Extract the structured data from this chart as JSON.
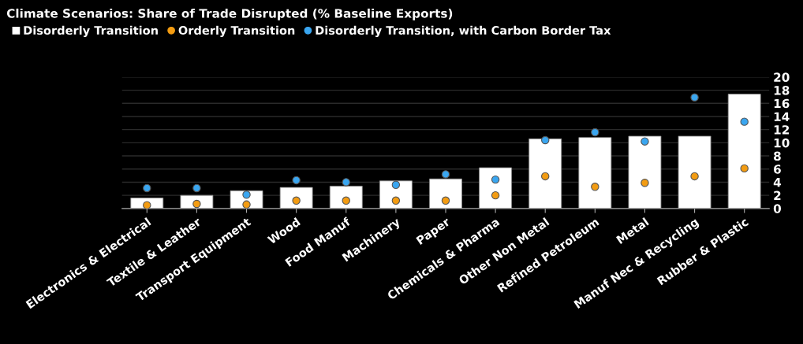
{
  "chart_data": {
    "type": "bar",
    "title": "Climate Scenarios: Share of Trade Disrupted (% Baseline Exports)",
    "categories": [
      "Electronics & Electrical",
      "Textile & Leather",
      "Transport Equipment",
      "Wood",
      "Food Manuf",
      "Machinery",
      "Paper",
      "Chemicals & Pharma",
      "Other Non Metal",
      "Refined Petroleum",
      "Metal",
      "Manuf Nec & Recycling",
      "Rubber & Plastic"
    ],
    "series": [
      {
        "name": "Disorderly Transition",
        "color": "#ffffff",
        "values": [
          1.6,
          2.0,
          2.7,
          3.2,
          3.4,
          4.2,
          4.5,
          6.2,
          10.6,
          10.8,
          11.0,
          11.0,
          17.4
        ]
      },
      {
        "name": "Orderly Transition",
        "color": "#f39c12",
        "type": "scatter",
        "values": [
          0.5,
          0.7,
          0.6,
          1.2,
          1.2,
          1.2,
          1.2,
          2.0,
          4.9,
          3.3,
          3.9,
          4.9,
          6.1
        ]
      },
      {
        "name": "Disorderly Transition, with Carbon Border Tax",
        "color": "#3aa6f0",
        "type": "scatter",
        "values": [
          3.1,
          3.1,
          2.1,
          4.3,
          4.0,
          3.6,
          5.2,
          4.4,
          10.4,
          11.6,
          10.2,
          16.9,
          13.2
        ]
      }
    ],
    "ylim": [
      0,
      20
    ],
    "yticks": [
      0,
      2,
      4,
      6,
      8,
      10,
      12,
      14,
      16,
      18,
      20
    ],
    "grid": "y",
    "legend": "top left",
    "marker": "circle"
  }
}
